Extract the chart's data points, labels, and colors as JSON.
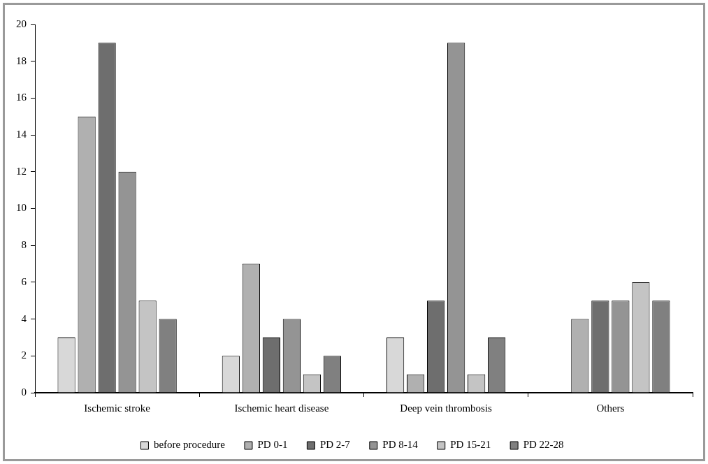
{
  "chart_data": {
    "type": "bar",
    "categories": [
      "Ischemic stroke",
      "Ischemic heart disease",
      "Deep vein thrombosis",
      "Others"
    ],
    "series": [
      {
        "name": "before procedure",
        "color": "#d8d8d8",
        "values": [
          3,
          2,
          3,
          0
        ]
      },
      {
        "name": "PD 0-1",
        "color": "#b0b0b0",
        "values": [
          15,
          7,
          1,
          4
        ]
      },
      {
        "name": "PD 2-7",
        "color": "#6e6e6e",
        "values": [
          19,
          3,
          5,
          5
        ]
      },
      {
        "name": "PD 8-14",
        "color": "#949494",
        "values": [
          12,
          4,
          19,
          5
        ]
      },
      {
        "name": "PD 15-21",
        "color": "#c4c4c4",
        "values": [
          5,
          1,
          1,
          6
        ]
      },
      {
        "name": "PD 22-28",
        "color": "#808080",
        "values": [
          4,
          2,
          3,
          5
        ]
      }
    ],
    "ylim": [
      0,
      20
    ],
    "yticks": [
      0,
      2,
      4,
      6,
      8,
      10,
      12,
      14,
      16,
      18,
      20
    ],
    "grid": false,
    "legend": "bottom"
  }
}
